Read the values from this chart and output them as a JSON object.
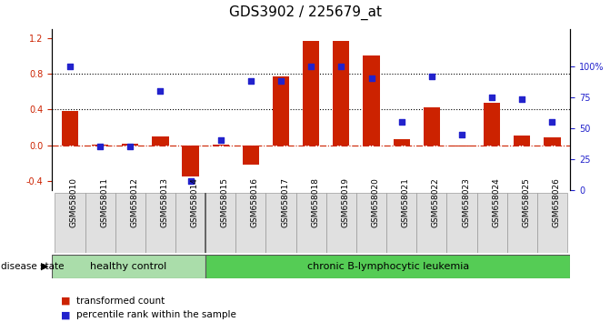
{
  "title": "GDS3902 / 225679_at",
  "categories": [
    "GSM658010",
    "GSM658011",
    "GSM658012",
    "GSM658013",
    "GSM658014",
    "GSM658015",
    "GSM658016",
    "GSM658017",
    "GSM658018",
    "GSM658019",
    "GSM658020",
    "GSM658021",
    "GSM658022",
    "GSM658023",
    "GSM658024",
    "GSM658025",
    "GSM658026"
  ],
  "bar_values": [
    0.38,
    0.01,
    0.02,
    0.1,
    -0.35,
    0.01,
    -0.22,
    0.77,
    1.17,
    1.17,
    1.0,
    0.07,
    0.42,
    -0.01,
    0.47,
    0.11,
    0.09
  ],
  "dot_values": [
    100,
    35,
    35,
    80,
    7,
    40,
    88,
    88,
    100,
    100,
    90,
    55,
    92,
    45,
    75,
    73,
    55
  ],
  "bar_color": "#cc2200",
  "dot_color": "#2222cc",
  "ylim_left": [
    -0.5,
    1.3
  ],
  "ylim_right": [
    0,
    130
  ],
  "yticks_left": [
    -0.4,
    0.0,
    0.4,
    0.8,
    1.2
  ],
  "yticks_right": [
    0,
    25,
    50,
    75,
    100
  ],
  "yticklabels_right": [
    "0",
    "25",
    "50",
    "75",
    "100%"
  ],
  "hlines": [
    0.8,
    0.4
  ],
  "zero_line_color": "#cc2200",
  "hline_color": "#000000",
  "healthy_control_count": 5,
  "group_labels": [
    "healthy control",
    "chronic B-lymphocytic leukemia"
  ],
  "group_colors": [
    "#aaddaa",
    "#55cc55"
  ],
  "disease_state_label": "disease state",
  "legend_bar_label": "transformed count",
  "legend_dot_label": "percentile rank within the sample",
  "background_color": "#ffffff",
  "plot_bg_color": "#ffffff",
  "tick_label_fontsize": 7,
  "title_fontsize": 11
}
